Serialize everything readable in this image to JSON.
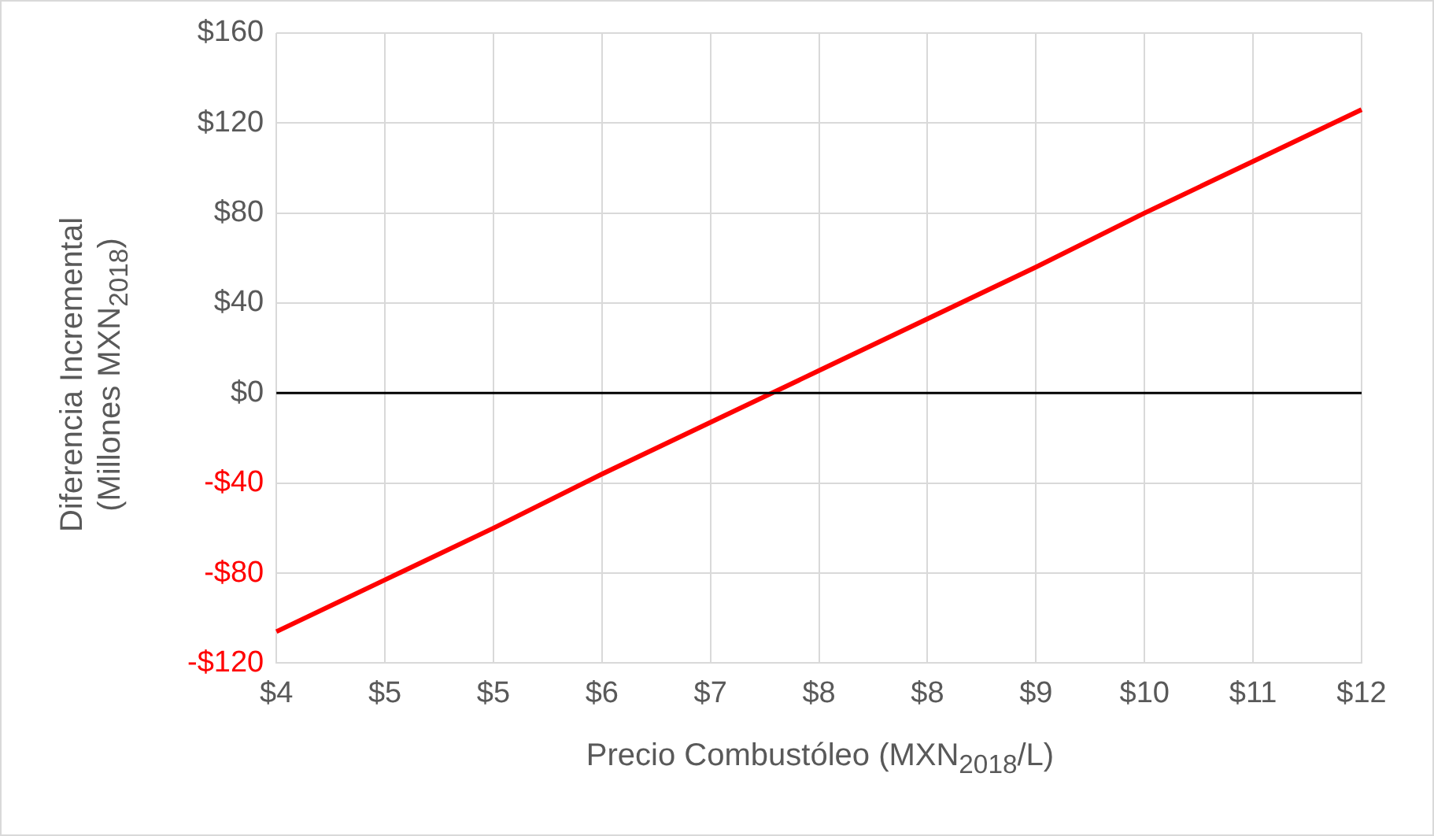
{
  "chart_data": {
    "type": "line",
    "xlabel": "Precio Combustóleo (MXN$_{2018}$/L)",
    "ylabel": "Diferencia Incremental (Millones MXN$_{2018}$)",
    "categories": [
      "$4",
      "$5",
      "$5",
      "$6",
      "$7",
      "$8",
      "$8",
      "$9",
      "$10",
      "$11",
      "$12"
    ],
    "series": [
      {
        "color": "#ff0000",
        "values": [
          -106,
          -83,
          -60,
          -36,
          -13,
          10,
          33,
          56,
          80,
          103,
          126
        ]
      }
    ],
    "ylim": [
      -120,
      160
    ],
    "yticks": [
      {
        "value": -120,
        "label": "-$120"
      },
      {
        "value": -80,
        "label": "-$80"
      },
      {
        "value": -40,
        "label": "-$40"
      },
      {
        "value": 0,
        "label": "$0"
      },
      {
        "value": 40,
        "label": "$40"
      },
      {
        "value": 80,
        "label": "$80"
      },
      {
        "value": 120,
        "label": "$120"
      },
      {
        "value": 160,
        "label": "$160"
      }
    ],
    "ref_lines": [
      {
        "axis": "y",
        "value": 0,
        "color": "#000000"
      }
    ],
    "grid": true,
    "legend": false,
    "marker": "none",
    "line_style": "solid"
  }
}
